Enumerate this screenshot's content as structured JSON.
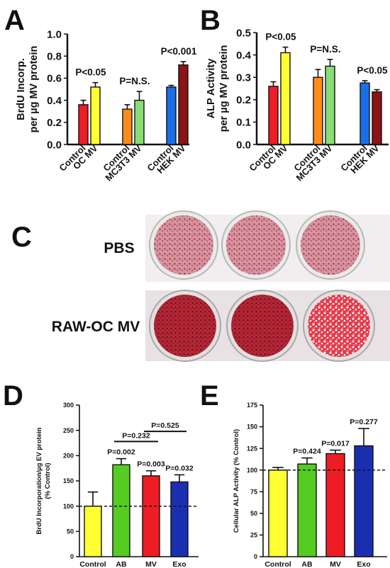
{
  "panels": {
    "A": {
      "letter": "A"
    },
    "B": {
      "letter": "B"
    },
    "C": {
      "letter": "C",
      "row1_label": "PBS",
      "row2_label": "RAW-OC MV"
    },
    "D": {
      "letter": "D"
    },
    "E": {
      "letter": "E"
    }
  },
  "colors": {
    "red": "#ee1c24",
    "yellow": "#ffff33",
    "orange": "#ff8c1a",
    "green": "#88dd77",
    "blue": "#1a6fe8",
    "darkred": "#8b1414",
    "green_d": "#55cc22",
    "navy": "#1a2fb0",
    "plate_pbs": "#c56a7a",
    "plate_raw": "#b8283a"
  },
  "chart_data": [
    {
      "id": "A",
      "type": "bar",
      "ylabel": [
        "BrdU Incorp.",
        "per µg MV protein"
      ],
      "ylim": [
        0,
        1.0
      ],
      "yticks": [
        "0.0",
        "0.2",
        "0.4",
        "0.6",
        "0.8",
        "1.0"
      ],
      "groups": [
        {
          "labels": [
            "Control",
            "OC MV"
          ],
          "values": [
            0.36,
            0.52
          ],
          "errors": [
            0.04,
            0.04
          ],
          "colors": [
            "red",
            "yellow"
          ],
          "pvalue": "P<0.05"
        },
        {
          "labels": [
            "Control",
            "MC3T3 MV"
          ],
          "values": [
            0.32,
            0.4
          ],
          "errors": [
            0.04,
            0.08
          ],
          "colors": [
            "orange",
            "green"
          ],
          "pvalue": "P=N.S."
        },
        {
          "labels": [
            "Control",
            "HEK MV"
          ],
          "values": [
            0.52,
            0.72
          ],
          "errors": [
            0.015,
            0.03
          ],
          "colors": [
            "blue",
            "darkred"
          ],
          "pvalue": "P<0.001"
        }
      ]
    },
    {
      "id": "B",
      "type": "bar",
      "ylabel": [
        "ALP Activity",
        "per µg MV protein"
      ],
      "ylim": [
        0,
        0.5
      ],
      "yticks": [
        "0.0",
        "0.1",
        "0.2",
        "0.3",
        "0.4",
        "0.5"
      ],
      "groups": [
        {
          "labels": [
            "Control",
            "OC MV"
          ],
          "values": [
            0.26,
            0.41
          ],
          "errors": [
            0.02,
            0.025
          ],
          "colors": [
            "red",
            "yellow"
          ],
          "pvalue": "P<0.05"
        },
        {
          "labels": [
            "Control",
            "MC3T3 MV"
          ],
          "values": [
            0.3,
            0.35
          ],
          "errors": [
            0.035,
            0.03
          ],
          "colors": [
            "orange",
            "green"
          ],
          "pvalue": "P=N.S."
        },
        {
          "labels": [
            "Control",
            "HEK MV"
          ],
          "values": [
            0.275,
            0.235
          ],
          "errors": [
            0.01,
            0.01
          ],
          "colors": [
            "blue",
            "darkred"
          ],
          "pvalue": "P<0.05"
        }
      ]
    },
    {
      "id": "D",
      "type": "bar",
      "ylabel": [
        "BrdU Incorporation/µg EV protein",
        "(% Control)"
      ],
      "ylim": [
        0,
        300
      ],
      "yticks": [
        "0",
        "50",
        "100",
        "150",
        "200",
        "250",
        "300"
      ],
      "categories": [
        "Control",
        "AB",
        "MV",
        "Exo"
      ],
      "values": [
        100,
        182,
        160,
        148
      ],
      "errors": [
        28,
        12,
        10,
        14
      ],
      "colors": [
        "yellow",
        "green_d",
        "red",
        "navy"
      ],
      "pvalues": [
        "",
        "P=0.002",
        "P=0.003",
        "P=0.032"
      ],
      "baseline": 100,
      "brackets": [
        {
          "from": 1,
          "to": 2,
          "label": "P=0.232",
          "y": 228
        },
        {
          "from": 2,
          "to": 3,
          "label": "P=0.525",
          "y": 248
        }
      ]
    },
    {
      "id": "E",
      "type": "bar",
      "ylabel": [
        "Cellular ALP Activity (% Control)"
      ],
      "ylim": [
        0,
        175
      ],
      "yticks": [
        "0",
        "25",
        "50",
        "75",
        "100",
        "125",
        "150",
        "175"
      ],
      "categories": [
        "Control",
        "AB",
        "MV",
        "Exo"
      ],
      "values": [
        100,
        107,
        119,
        128
      ],
      "errors": [
        3,
        7,
        4,
        20
      ],
      "colors": [
        "yellow",
        "green_d",
        "red",
        "navy"
      ],
      "pvalues": [
        "",
        "P=0.424",
        "P=0.017",
        "P=0.277"
      ],
      "baseline": 100
    }
  ]
}
